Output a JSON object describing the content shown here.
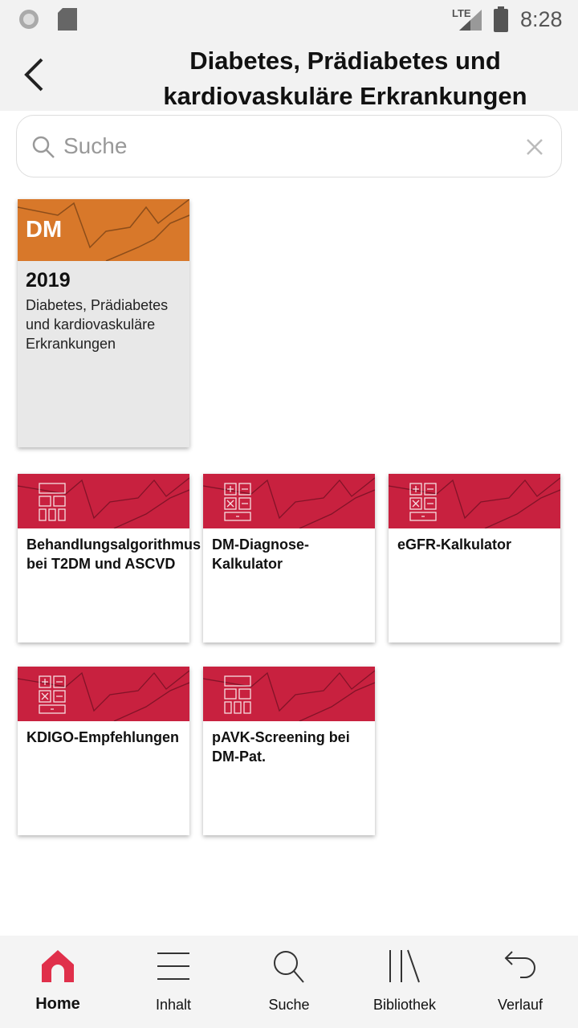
{
  "status_bar": {
    "time": "8:28",
    "network": "LTE"
  },
  "header": {
    "title": "Diabetes, Prädiabetes und kardiovaskuläre Erkrankungen"
  },
  "search": {
    "placeholder": "Suche"
  },
  "featured": {
    "badge": "DM",
    "year": "2019",
    "description": "Diabetes, Prädiabetes und kardiovaskuläre Erkrankungen",
    "color": "#d8782a"
  },
  "tools": [
    {
      "title": "Behandlungsalgorithmus bei T2DM und ASCVD",
      "icon": "flowchart-icon"
    },
    {
      "title": "DM-Diagnose-Kalkulator",
      "icon": "calculator-icon"
    },
    {
      "title": "eGFR-Kalkulator",
      "icon": "calculator-icon"
    },
    {
      "title": "KDIGO-Empfehlungen",
      "icon": "calculator-icon"
    },
    {
      "title": "pAVK-Screening bei DM-Pat.",
      "icon": "flowchart-icon"
    }
  ],
  "accent": "#e0304b",
  "nav": [
    {
      "label": "Home",
      "active": true
    },
    {
      "label": "Inhalt"
    },
    {
      "label": "Suche"
    },
    {
      "label": "Bibliothek"
    },
    {
      "label": "Verlauf"
    }
  ]
}
